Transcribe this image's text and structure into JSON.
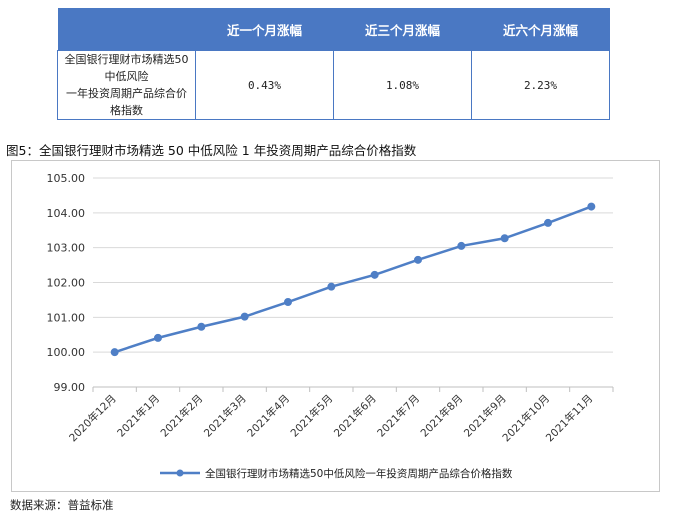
{
  "table": {
    "headers": [
      "",
      "近一个月涨幅",
      "近三个月涨幅",
      "近六个月涨幅"
    ],
    "row": {
      "name_line1": "全国银行理财市场精选50中低风险",
      "name_line2": "一年投资周期产品综合价格指数",
      "values": [
        "0.43%",
        "1.08%",
        "2.23%"
      ]
    }
  },
  "figure_caption": "图5：全国银行理财市场精选 50 中低风险 1 年投资周期产品综合价格指数",
  "source_note": "数据来源：普益标准",
  "colors": {
    "header_bg": "#4a78c3",
    "series": "#4f7fc6",
    "grid": "#d9d9d9"
  },
  "chart_data": {
    "type": "line",
    "categories": [
      "2020年12月",
      "2021年1月",
      "2021年2月",
      "2021年3月",
      "2021年4月",
      "2021年5月",
      "2021年6月",
      "2021年7月",
      "2021年8月",
      "2021年9月",
      "2021年10月",
      "2021年11月"
    ],
    "series": [
      {
        "name": "全国银行理财市场精选50中低风险一年投资周期产品综合价格指数",
        "values": [
          100.0,
          100.41,
          100.73,
          101.02,
          101.44,
          101.88,
          102.22,
          102.65,
          103.05,
          103.27,
          103.71,
          104.18
        ]
      }
    ],
    "yticks": [
      "99.00",
      "100.00",
      "101.00",
      "102.00",
      "103.00",
      "104.00",
      "105.00"
    ],
    "ylim": [
      99,
      105
    ],
    "grid": true,
    "legend": "bottom"
  }
}
